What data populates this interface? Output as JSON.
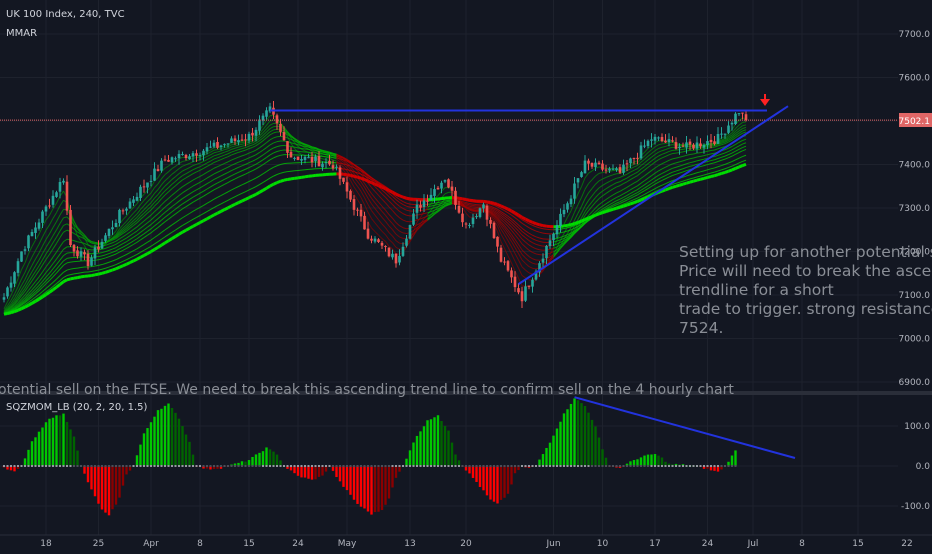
{
  "header": {
    "title": "UK 100 Index, 240, TVC",
    "indicator": "MMAR"
  },
  "colors": {
    "background": "#131722",
    "up_candle": "#26a69a",
    "down_candle": "#ef5350",
    "ribbon_bull": "#00e600",
    "ribbon_bear": "#d60000",
    "trendline": "#2233dd",
    "resistance_line": "#2233dd",
    "price_line": "#e06666",
    "arrow": "#ff2222",
    "annotation_text": "#8a8e96",
    "axis_text": "#b2b5be",
    "mom_green_bright": "#00c800",
    "mom_green_dark": "#006400",
    "mom_red_bright": "#ff0000",
    "mom_red_dark": "#8b0000"
  },
  "annotation": {
    "lines": [
      "Setting up for another potential sell.",
      "Price will need to break the ascendin",
      "trendline for a short",
      "trade to trigger.  strong resistance a",
      "7524."
    ]
  },
  "idea_caption": "otential sell on the FTSE.  We need to break this ascending trend line to confirm sell on the 4 hourly chart",
  "price_badge": "7502.1",
  "oscillator": {
    "title": "SQZMOM_LB (20, 2, 20, 1.5)"
  },
  "chart_data": [
    {
      "type": "candlestick",
      "title": "UK 100 Index, 240, TVC",
      "y_ticks": [
        "7700.0",
        "7600.0",
        "7500.0",
        "7400.0",
        "7300.0",
        "7200.0",
        "7100.0",
        "7000.0",
        "6900.0"
      ],
      "ylim": [
        6900,
        7740
      ],
      "x_ticks": [
        "18",
        "25",
        "Apr",
        "8",
        "15",
        "24",
        "May",
        "13",
        "20",
        "Jun",
        "10",
        "17",
        "24",
        "Jul",
        "8",
        "15",
        "22"
      ],
      "last_price": 7502.1,
      "resistance_level": 7524,
      "price_path_knots": [
        [
          0,
          7095
        ],
        [
          5,
          7200
        ],
        [
          12,
          7300
        ],
        [
          17,
          7370
        ],
        [
          19,
          7215
        ],
        [
          24,
          7175
        ],
        [
          33,
          7285
        ],
        [
          46,
          7410
        ],
        [
          60,
          7440
        ],
        [
          70,
          7465
        ],
        [
          76,
          7524
        ],
        [
          82,
          7420
        ],
        [
          94,
          7400
        ],
        [
          104,
          7240
        ],
        [
          112,
          7180
        ],
        [
          118,
          7300
        ],
        [
          126,
          7370
        ],
        [
          132,
          7260
        ],
        [
          137,
          7310
        ],
        [
          142,
          7180
        ],
        [
          148,
          7095
        ],
        [
          158,
          7260
        ],
        [
          166,
          7400
        ],
        [
          176,
          7380
        ],
        [
          185,
          7460
        ],
        [
          195,
          7440
        ],
        [
          204,
          7460
        ],
        [
          210,
          7524
        ],
        [
          212,
          7502
        ]
      ],
      "ribbon_lengths": [
        5,
        8,
        11,
        14,
        17,
        20,
        25,
        30,
        35,
        40,
        45,
        55,
        65,
        75
      ],
      "trendlines": [
        {
          "name": "ascending trendline",
          "from": [
            147,
            7125
          ],
          "to": [
            224,
            7534
          ]
        },
        {
          "name": "resistance",
          "from": [
            76,
            7524
          ],
          "to": [
            218,
            7524
          ]
        }
      ]
    },
    {
      "type": "bar",
      "title": "SQZMOM_LB (20, 2, 20, 1.5)",
      "y_ticks": [
        "100.0",
        "0.0",
        "-100.0"
      ],
      "ylim": [
        -125,
        172
      ],
      "momentum_knots": [
        [
          0,
          -5
        ],
        [
          3,
          -15
        ],
        [
          5,
          0
        ],
        [
          8,
          60
        ],
        [
          13,
          120
        ],
        [
          17,
          130
        ],
        [
          20,
          75
        ],
        [
          22,
          0
        ],
        [
          25,
          -60
        ],
        [
          28,
          -110
        ],
        [
          30,
          -125
        ],
        [
          33,
          -80
        ],
        [
          35,
          -20
        ],
        [
          37,
          0
        ],
        [
          40,
          80
        ],
        [
          44,
          140
        ],
        [
          47,
          155
        ],
        [
          50,
          120
        ],
        [
          53,
          60
        ],
        [
          55,
          0
        ],
        [
          58,
          -8
        ],
        [
          62,
          -5
        ],
        [
          66,
          5
        ],
        [
          70,
          15
        ],
        [
          75,
          45
        ],
        [
          78,
          30
        ],
        [
          80,
          0
        ],
        [
          84,
          -25
        ],
        [
          88,
          -35
        ],
        [
          91,
          -25
        ],
        [
          93,
          0
        ],
        [
          96,
          -40
        ],
        [
          101,
          -95
        ],
        [
          105,
          -120
        ],
        [
          108,
          -110
        ],
        [
          110,
          -80
        ],
        [
          112,
          -30
        ],
        [
          114,
          0
        ],
        [
          117,
          60
        ],
        [
          121,
          115
        ],
        [
          124,
          125
        ],
        [
          127,
          90
        ],
        [
          129,
          30
        ],
        [
          131,
          0
        ],
        [
          135,
          -40
        ],
        [
          139,
          -85
        ],
        [
          141,
          -95
        ],
        [
          144,
          -70
        ],
        [
          146,
          -20
        ],
        [
          148,
          0
        ],
        [
          150,
          -5
        ],
        [
          152,
          0
        ],
        [
          156,
          60
        ],
        [
          160,
          130
        ],
        [
          163,
          170
        ],
        [
          166,
          150
        ],
        [
          169,
          100
        ],
        [
          171,
          40
        ],
        [
          173,
          0
        ],
        [
          176,
          -5
        ],
        [
          180,
          15
        ],
        [
          183,
          25
        ],
        [
          186,
          30
        ],
        [
          188,
          20
        ],
        [
          190,
          5
        ],
        [
          194,
          3
        ],
        [
          198,
          0
        ],
        [
          201,
          -8
        ],
        [
          204,
          -15
        ],
        [
          206,
          0
        ],
        [
          208,
          25
        ],
        [
          209,
          38
        ]
      ],
      "trendline": {
        "from": [
          163,
          172
        ],
        "to": [
          226,
          20
        ]
      }
    }
  ]
}
